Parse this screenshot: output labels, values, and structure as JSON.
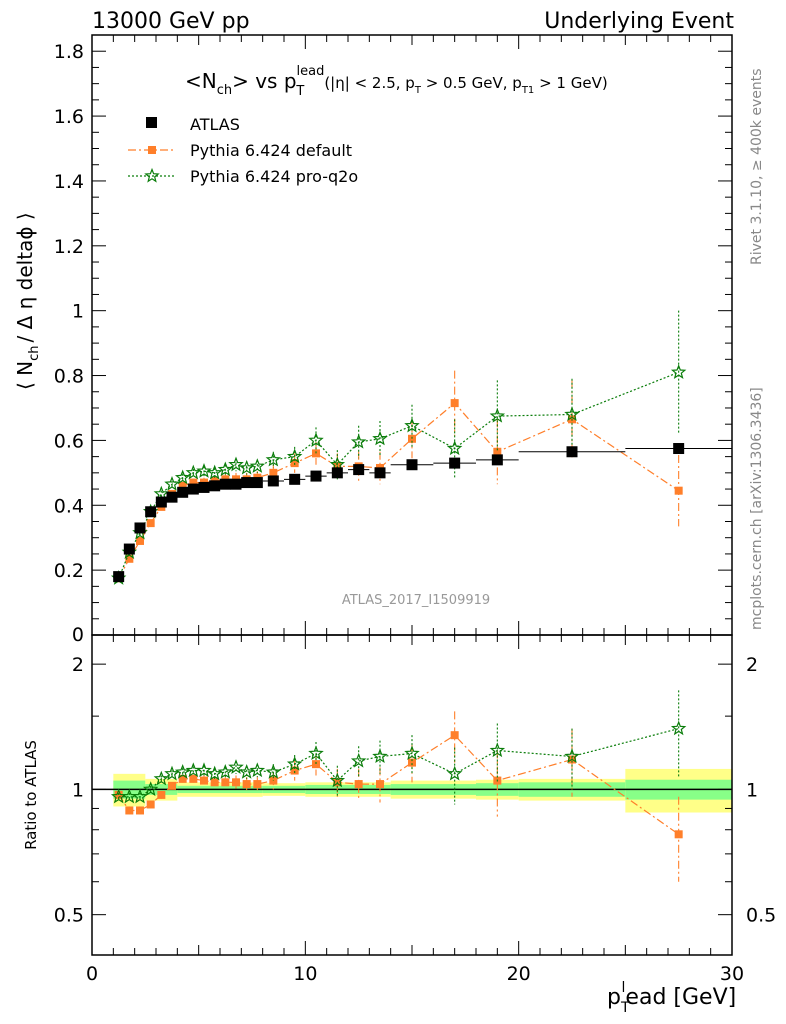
{
  "header": {
    "left": "13000 GeV pp",
    "right": "Underlying Event"
  },
  "side_labels": {
    "rivet": "Rivet 3.1.10, ≥ 400k events",
    "mcplots": "mcplots.cern.ch [arXiv:1306.3436]"
  },
  "plot_title": {
    "prefix": "<N",
    "sub_ch": "ch",
    "mid": "> vs p",
    "sup_lead": "lead",
    "sub_T": "T",
    "cuts_1": "(|η| < 2.5, p",
    "cuts_T": "T",
    "cuts_2": " > 0.5 GeV, p",
    "cuts_T1": "T1",
    "cuts_3": " > 1 GeV)"
  },
  "analysis_label": "ATLAS_2017_I1509919",
  "ylabel_main": {
    "a": "⟨ N",
    "sub": "ch",
    "b": "/ Δ η deltaϕ ⟩"
  },
  "ylabel_ratio": "Ratio to ATLAS",
  "xlabel": {
    "a": "p",
    "sub": "T",
    "sup": "l",
    "b": "ead [GeV]"
  },
  "legend": [
    {
      "label": "ATLAS",
      "marker": "square",
      "color": "#000000"
    },
    {
      "label": "Pythia 6.424 default",
      "marker": "square",
      "color": "#ff7f2a"
    },
    {
      "label": "Pythia 6.424 pro-q2o",
      "marker": "star",
      "color": "#0a7d0a"
    }
  ],
  "chart_data": [
    {
      "type": "scatter",
      "panel": "main",
      "xlim": [
        0,
        30
      ],
      "ylim": [
        0,
        1.85
      ],
      "yticks": [
        0.2,
        0.4,
        0.6,
        0.8,
        1,
        1.2,
        1.4,
        1.6,
        1.8
      ],
      "ytick_labels": [
        "0.2",
        "0.4",
        "0.6",
        "0.8",
        "1",
        "1.2",
        "1.4",
        "1.6",
        "1.8"
      ],
      "zero_label": "0",
      "series": [
        {
          "name": "ATLAS",
          "x": [
            1.25,
            1.75,
            2.25,
            2.75,
            3.25,
            3.75,
            4.25,
            4.75,
            5.25,
            5.75,
            6.25,
            6.75,
            7.25,
            7.75,
            8.5,
            9.5,
            10.5,
            11.5,
            12.5,
            13.5,
            15.0,
            17.0,
            19.0,
            22.5,
            27.5
          ],
          "y": [
            0.18,
            0.265,
            0.33,
            0.38,
            0.41,
            0.425,
            0.44,
            0.45,
            0.455,
            0.46,
            0.465,
            0.465,
            0.47,
            0.47,
            0.475,
            0.48,
            0.49,
            0.5,
            0.51,
            0.5,
            0.525,
            0.53,
            0.54,
            0.565,
            0.575
          ],
          "xerr": [
            0.25,
            0.25,
            0.25,
            0.25,
            0.25,
            0.25,
            0.25,
            0.25,
            0.25,
            0.25,
            0.25,
            0.25,
            0.25,
            0.25,
            0.5,
            0.5,
            0.5,
            0.5,
            0.5,
            0.5,
            1.0,
            1.0,
            1.0,
            2.5,
            2.5
          ]
        },
        {
          "name": "Pythia 6.424 default",
          "x": [
            1.25,
            1.75,
            2.25,
            2.75,
            3.25,
            3.75,
            4.25,
            4.75,
            5.25,
            5.75,
            6.25,
            6.75,
            7.25,
            7.75,
            8.5,
            9.5,
            10.5,
            11.5,
            12.5,
            13.5,
            15.0,
            17.0,
            19.0,
            22.5,
            27.5
          ],
          "y": [
            0.175,
            0.235,
            0.29,
            0.345,
            0.395,
            0.435,
            0.46,
            0.47,
            0.47,
            0.475,
            0.48,
            0.48,
            0.48,
            0.485,
            0.5,
            0.53,
            0.56,
            0.52,
            0.52,
            0.515,
            0.605,
            0.715,
            0.565,
            0.665,
            0.445
          ],
          "yerr": [
            0.01,
            0.01,
            0.01,
            0.01,
            0.01,
            0.01,
            0.012,
            0.012,
            0.015,
            0.015,
            0.015,
            0.02,
            0.02,
            0.02,
            0.025,
            0.03,
            0.035,
            0.04,
            0.045,
            0.05,
            0.06,
            0.1,
            0.1,
            0.12,
            0.11
          ]
        },
        {
          "name": "Pythia 6.424 pro-q2o",
          "x": [
            1.25,
            1.75,
            2.25,
            2.75,
            3.25,
            3.75,
            4.25,
            4.75,
            5.25,
            5.75,
            6.25,
            6.75,
            7.25,
            7.75,
            8.5,
            9.5,
            10.5,
            11.5,
            12.5,
            13.5,
            15.0,
            17.0,
            19.0,
            22.5,
            27.5
          ],
          "y": [
            0.175,
            0.255,
            0.315,
            0.38,
            0.435,
            0.465,
            0.485,
            0.5,
            0.505,
            0.5,
            0.51,
            0.525,
            0.515,
            0.52,
            0.54,
            0.55,
            0.6,
            0.525,
            0.595,
            0.605,
            0.645,
            0.575,
            0.675,
            0.68,
            0.81
          ],
          "yerr": [
            0.01,
            0.01,
            0.01,
            0.01,
            0.01,
            0.01,
            0.012,
            0.012,
            0.015,
            0.015,
            0.015,
            0.02,
            0.02,
            0.02,
            0.025,
            0.03,
            0.04,
            0.045,
            0.05,
            0.055,
            0.065,
            0.09,
            0.11,
            0.11,
            0.19
          ]
        }
      ]
    },
    {
      "type": "scatter",
      "panel": "ratio",
      "xlim": [
        0,
        30
      ],
      "ylim": [
        0.4,
        2.35
      ],
      "log_y": true,
      "yticks": [
        0.5,
        1,
        2
      ],
      "ytick_labels": [
        "0.5",
        "1",
        "2"
      ],
      "xticks": [
        0,
        10,
        20,
        30
      ],
      "xtick_labels": [
        "0",
        "10",
        "20",
        "30"
      ],
      "band_edges": [
        1.0,
        2.5,
        4.0,
        8.0,
        10.0,
        14.0,
        18.0,
        20.0,
        25.0,
        30.0
      ],
      "band_inner": [
        0.05,
        0.03,
        0.02,
        0.02,
        0.025,
        0.03,
        0.035,
        0.04,
        0.055
      ],
      "band_outer": [
        0.09,
        0.06,
        0.04,
        0.035,
        0.04,
        0.05,
        0.055,
        0.06,
        0.12
      ],
      "series": [
        {
          "name": "Pythia 6.424 default",
          "x": [
            1.25,
            1.75,
            2.25,
            2.75,
            3.25,
            3.75,
            4.25,
            4.75,
            5.25,
            5.75,
            6.25,
            6.75,
            7.25,
            7.75,
            8.5,
            9.5,
            10.5,
            11.5,
            12.5,
            13.5,
            15.0,
            17.0,
            19.0,
            22.5,
            27.5
          ],
          "y": [
            0.97,
            0.89,
            0.89,
            0.92,
            0.97,
            1.02,
            1.06,
            1.06,
            1.05,
            1.04,
            1.04,
            1.04,
            1.03,
            1.03,
            1.05,
            1.11,
            1.15,
            1.04,
            1.03,
            1.03,
            1.16,
            1.35,
            1.05,
            1.18,
            0.78
          ],
          "yerr": [
            0.02,
            0.02,
            0.02,
            0.02,
            0.02,
            0.02,
            0.025,
            0.025,
            0.03,
            0.03,
            0.03,
            0.04,
            0.04,
            0.04,
            0.05,
            0.06,
            0.07,
            0.08,
            0.09,
            0.1,
            0.12,
            0.19,
            0.19,
            0.22,
            0.18
          ]
        },
        {
          "name": "Pythia 6.424 pro-q2o",
          "x": [
            1.25,
            1.75,
            2.25,
            2.75,
            3.25,
            3.75,
            4.25,
            4.75,
            5.25,
            5.75,
            6.25,
            6.75,
            7.25,
            7.75,
            8.5,
            9.5,
            10.5,
            11.5,
            12.5,
            13.5,
            15.0,
            17.0,
            19.0,
            22.5,
            27.5
          ],
          "y": [
            0.96,
            0.96,
            0.96,
            1.0,
            1.06,
            1.09,
            1.1,
            1.11,
            1.11,
            1.09,
            1.1,
            1.13,
            1.1,
            1.11,
            1.1,
            1.15,
            1.22,
            1.05,
            1.17,
            1.2,
            1.22,
            1.09,
            1.24,
            1.2,
            1.4
          ],
          "yerr": [
            0.02,
            0.02,
            0.02,
            0.02,
            0.02,
            0.02,
            0.025,
            0.025,
            0.03,
            0.03,
            0.03,
            0.04,
            0.04,
            0.04,
            0.05,
            0.06,
            0.08,
            0.09,
            0.1,
            0.11,
            0.13,
            0.17,
            0.2,
            0.2,
            0.33
          ]
        }
      ]
    }
  ]
}
